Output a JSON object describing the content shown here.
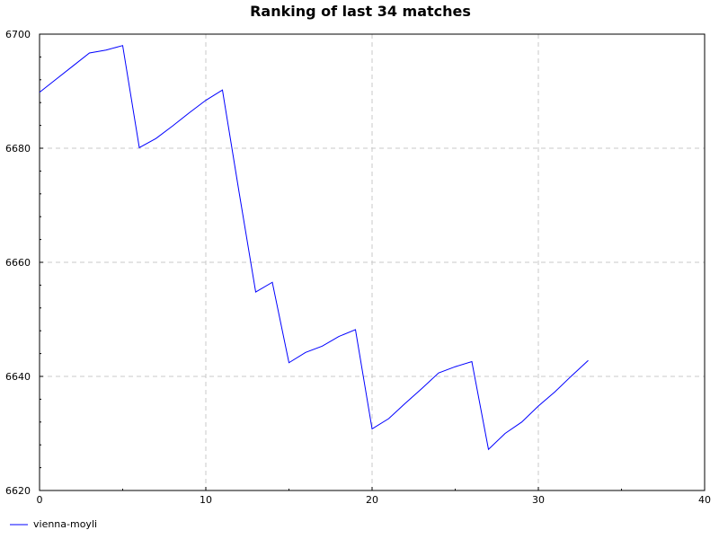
{
  "chart_data": {
    "type": "line",
    "title": "Ranking of last 34 matches",
    "xlabel": "",
    "ylabel": "",
    "xlim": [
      0,
      40
    ],
    "ylim": [
      6620,
      6700
    ],
    "x_ticks": [
      0,
      10,
      20,
      30,
      40
    ],
    "y_ticks": [
      6620,
      6640,
      6660,
      6680,
      6700
    ],
    "grid": true,
    "legend_position": "bottom-left",
    "series": [
      {
        "name": "vienna-moyli",
        "color": "#0000ff",
        "x": [
          0,
          1,
          2,
          3,
          4,
          5,
          6,
          7,
          8,
          9,
          10,
          11,
          12,
          13,
          14,
          15,
          16,
          17,
          18,
          19,
          20,
          21,
          22,
          23,
          24,
          25,
          26,
          27,
          28,
          29,
          30,
          31,
          32,
          33
        ],
        "values": [
          6689.8,
          6692.1,
          6694.4,
          6696.7,
          6697.2,
          6698.0,
          6680.1,
          6681.7,
          6683.9,
          6686.2,
          6688.4,
          6690.2,
          6672.3,
          6654.8,
          6656.5,
          6642.4,
          6644.2,
          6645.3,
          6647.0,
          6648.2,
          6630.8,
          6632.6,
          6635.3,
          6637.9,
          6640.6,
          6641.7,
          6642.6,
          6627.2,
          6630.0,
          6632.0,
          6634.8,
          6637.3,
          6640.1,
          6642.8
        ]
      }
    ]
  }
}
